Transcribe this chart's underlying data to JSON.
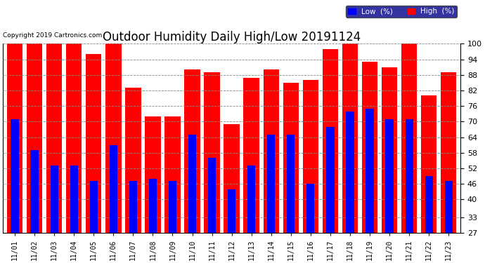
{
  "title": "Outdoor Humidity Daily High/Low 20191124",
  "copyright": "Copyright 2019 Cartronics.com",
  "dates": [
    "11/01",
    "11/02",
    "11/03",
    "11/04",
    "11/05",
    "11/06",
    "11/07",
    "11/08",
    "11/09",
    "11/10",
    "11/11",
    "11/12",
    "11/13",
    "11/14",
    "11/15",
    "11/16",
    "11/17",
    "11/18",
    "11/19",
    "11/20",
    "11/21",
    "11/22",
    "11/23"
  ],
  "high": [
    100,
    100,
    100,
    100,
    96,
    100,
    83,
    72,
    72,
    90,
    89,
    69,
    87,
    90,
    85,
    86,
    98,
    100,
    93,
    91,
    100,
    80,
    89
  ],
  "low": [
    71,
    59,
    53,
    53,
    47,
    61,
    47,
    48,
    47,
    65,
    56,
    44,
    53,
    65,
    65,
    46,
    68,
    74,
    75,
    71,
    71,
    49,
    47
  ],
  "ylim": [
    27,
    100
  ],
  "yticks": [
    27,
    33,
    40,
    46,
    52,
    58,
    64,
    70,
    76,
    82,
    88,
    94,
    100
  ],
  "bg_color": "#ffffff",
  "plot_bg_color": "#ffffff",
  "bar_color_low": "#0000ff",
  "bar_color_high": "#ff0000",
  "grid_color": "#888888",
  "title_fontsize": 12,
  "legend_low_label": "Low  (%)",
  "legend_high_label": "High  (%)",
  "bar_width": 0.8
}
